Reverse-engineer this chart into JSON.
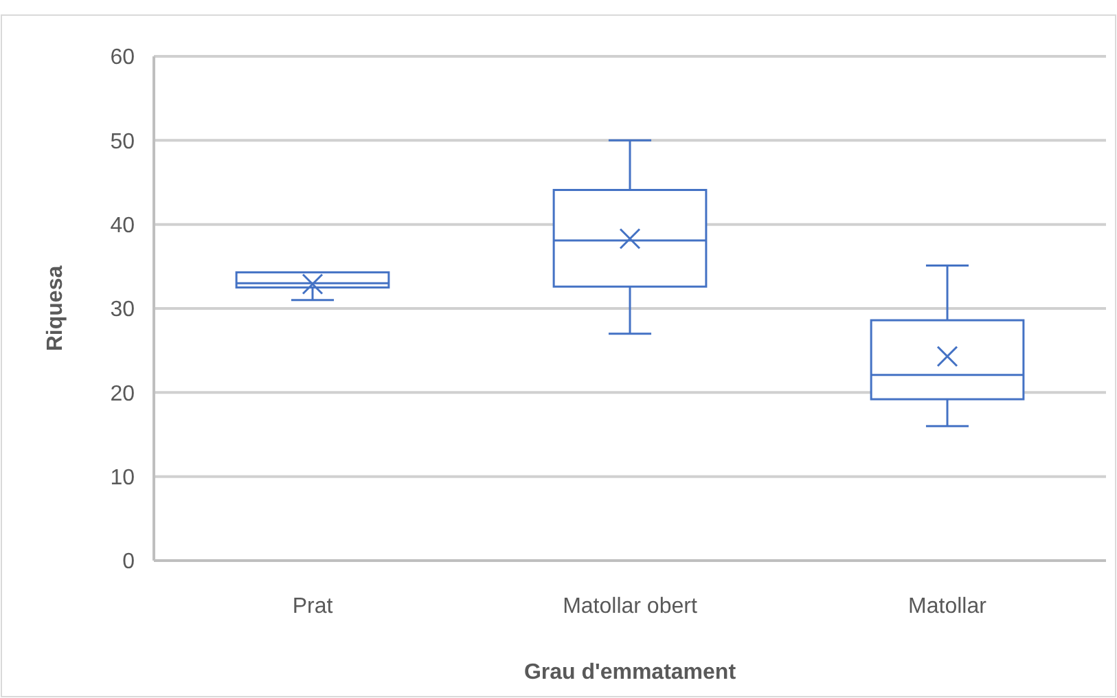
{
  "chart_data": {
    "type": "box",
    "xlabel": "Grau d'emmatament",
    "ylabel": "Riquesa",
    "categories": [
      "Prat",
      "Matollar obert",
      "Matollar"
    ],
    "color": "#4472c4",
    "ylim": [
      0,
      60
    ],
    "yticks": [
      0,
      10,
      20,
      30,
      40,
      50,
      60
    ],
    "grid": "y",
    "boxes": [
      {
        "low": 31,
        "q1": 32.5,
        "median": 33,
        "q3": 34.3,
        "high": 34.3,
        "mean": 32.9
      },
      {
        "low": 27,
        "q1": 32.6,
        "median": 38.1,
        "q3": 44.1,
        "high": 50,
        "mean": 38.3
      },
      {
        "low": 16,
        "q1": 19.2,
        "median": 22.1,
        "q3": 28.6,
        "high": 35.1,
        "mean": 24.3
      }
    ]
  }
}
